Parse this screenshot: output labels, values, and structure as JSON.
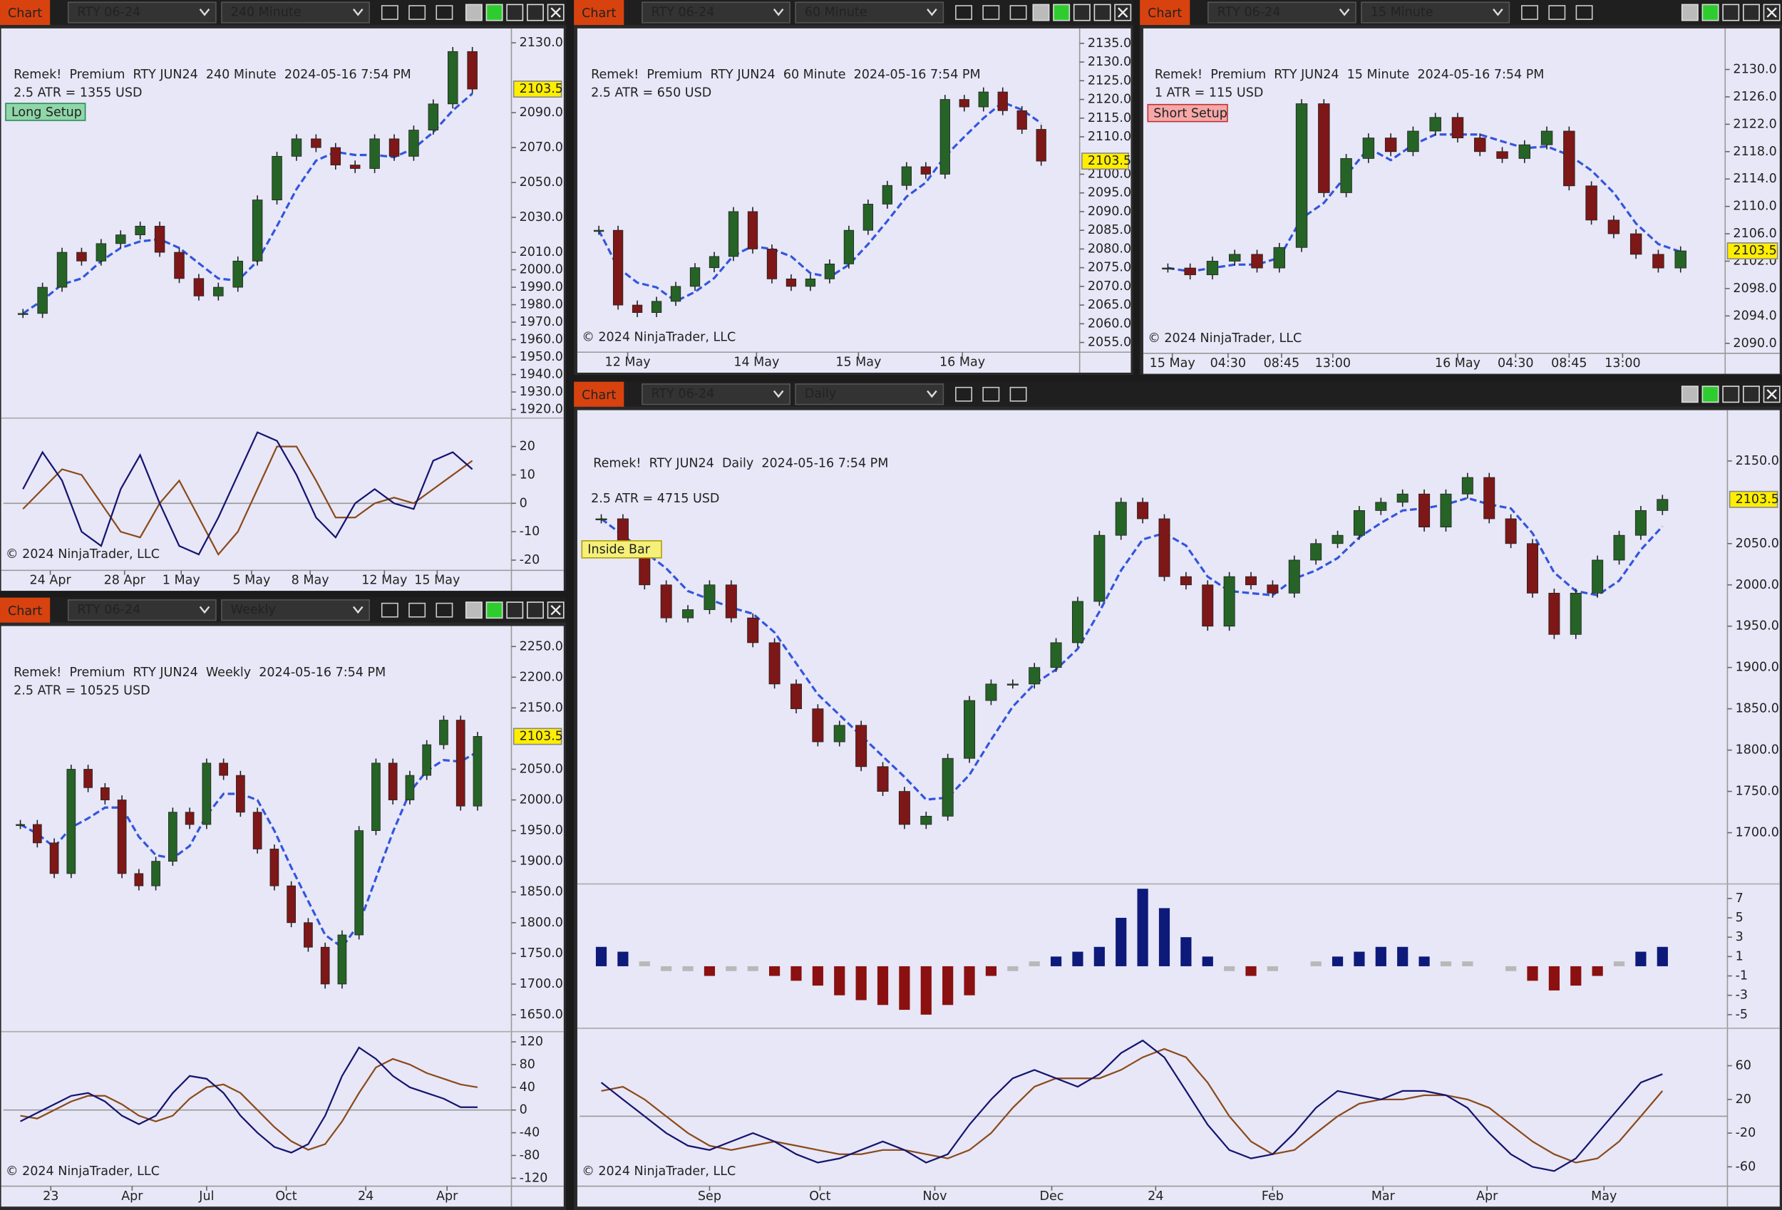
{
  "windows": [
    {
      "tab": "Chart",
      "symbol": "RTY 06-24",
      "interval": "240 Minute",
      "header": "Remek!  Premium  RTY JUN24  240 Minute  2024-05-16 7:54 PM",
      "atr": "2.5 ATR = 1355 USD",
      "badge": "Long Setup",
      "copyright": "© 2024 NinjaTrader, LLC",
      "last": 2103.5,
      "xlim": [
        -1,
        25
      ],
      "xticks": [
        {
          "value": 1.4,
          "label": "24 Apr"
        },
        {
          "value": 5.2,
          "label": "28 Apr"
        },
        {
          "value": 8.1,
          "label": "1 May"
        },
        {
          "value": 11.7,
          "label": "5 May"
        },
        {
          "value": 14.7,
          "label": "8 May"
        },
        {
          "value": 18.5,
          "label": "12 May"
        },
        {
          "value": 21.2,
          "label": "15 May"
        }
      ],
      "price": {
        "ylim": [
          1917,
          2135
        ],
        "yticks": [
          {
            "value": 2130,
            "label": "2130.0"
          },
          {
            "value": 2090,
            "label": "2090.0"
          },
          {
            "value": 2070,
            "label": "2070.0"
          },
          {
            "value": 2050,
            "label": "2050.0"
          },
          {
            "value": 2030,
            "label": "2030.0"
          },
          {
            "value": 2010,
            "label": "2010.0"
          },
          {
            "value": 2000,
            "label": "2000.0"
          },
          {
            "value": 1990,
            "label": "1990.0"
          },
          {
            "value": 1980,
            "label": "1980.0"
          },
          {
            "value": 1970,
            "label": "1970.0"
          },
          {
            "value": 1960,
            "label": "1960.0"
          },
          {
            "value": 1950,
            "label": "1950.0"
          },
          {
            "value": 1940,
            "label": "1940.0"
          },
          {
            "value": 1930,
            "label": "1930.0"
          },
          {
            "value": 1920,
            "label": "1920.0"
          }
        ],
        "closes": [
          1975,
          1990,
          2010,
          2005,
          2015,
          2020,
          2025,
          2010,
          1995,
          1985,
          1990,
          2005,
          2040,
          2065,
          2075,
          2070,
          2060,
          2058,
          2075,
          2065,
          2080,
          2095,
          2125,
          2103.5
        ]
      },
      "osc": {
        "ylim": [
          -22.8,
          30
        ],
        "yticks": [
          20,
          10,
          0,
          -10,
          -20
        ],
        "fast": [
          5,
          18,
          8,
          -10,
          -15,
          5,
          17,
          0,
          -15,
          -18,
          -5,
          10,
          25,
          22,
          10,
          -5,
          -12,
          0,
          5,
          0,
          -2,
          15,
          18,
          12
        ],
        "slow": [
          -2,
          5,
          12,
          10,
          0,
          -10,
          -12,
          0,
          8,
          -5,
          -18,
          -10,
          5,
          20,
          20,
          8,
          -5,
          -5,
          0,
          2,
          0,
          5,
          10,
          15
        ]
      }
    },
    {
      "tab": "Chart",
      "symbol": "RTY 06-24",
      "interval": "60 Minute",
      "header": "Remek!  Premium  RTY JUN24  60 Minute  2024-05-16 7:54 PM",
      "atr": "2.5 ATR = 650 USD",
      "copyright": "© 2024 NinjaTrader, LLC",
      "last": 2103.5,
      "xlim": [
        -1,
        25
      ],
      "xticks": [
        {
          "value": 1.5,
          "label": "12 May"
        },
        {
          "value": 8.2,
          "label": "14 May"
        },
        {
          "value": 13.5,
          "label": "15 May"
        },
        {
          "value": 18.9,
          "label": "16 May"
        }
      ],
      "price": {
        "ylim": [
          2053,
          2139
        ],
        "yticks": [
          {
            "value": 2135,
            "label": "2135.0"
          },
          {
            "value": 2130,
            "label": "2130.0"
          },
          {
            "value": 2125,
            "label": "2125.0"
          },
          {
            "value": 2120,
            "label": "2120.0"
          },
          {
            "value": 2115,
            "label": "2115.0"
          },
          {
            "value": 2110,
            "label": "2110.0"
          },
          {
            "value": 2100,
            "label": "2100.0"
          },
          {
            "value": 2095,
            "label": "2095.0"
          },
          {
            "value": 2090,
            "label": "2090.0"
          },
          {
            "value": 2085,
            "label": "2085.0"
          },
          {
            "value": 2080,
            "label": "2080.0"
          },
          {
            "value": 2075,
            "label": "2075.0"
          },
          {
            "value": 2070,
            "label": "2070.0"
          },
          {
            "value": 2065,
            "label": "2065.0"
          },
          {
            "value": 2060,
            "label": "2060.0"
          },
          {
            "value": 2055,
            "label": "2055.0"
          }
        ],
        "closes": [
          2085,
          2065,
          2063,
          2066,
          2070,
          2075,
          2078,
          2090,
          2080,
          2072,
          2070,
          2072,
          2076,
          2085,
          2092,
          2097,
          2102,
          2100,
          2120,
          2118,
          2122,
          2117,
          2112,
          2103.5
        ]
      }
    },
    {
      "tab": "Chart",
      "symbol": "RTY 06-24",
      "interval": "15 Minute",
      "header": "Remek!  Premium  RTY JUN24  15 Minute  2024-05-16 7:54 PM",
      "atr": "1 ATR = 115 USD",
      "badge": "Short Setup",
      "copyright": "© 2024 NinjaTrader, LLC",
      "last": 2103.5,
      "xlim": [
        -1,
        25
      ],
      "xticks": [
        {
          "value": 0.2,
          "label": "15 May"
        },
        {
          "value": 2.7,
          "label": "04:30"
        },
        {
          "value": 5.1,
          "label": "08:45"
        },
        {
          "value": 7.4,
          "label": "13:00"
        },
        {
          "value": 13,
          "label": "16 May"
        },
        {
          "value": 15.6,
          "label": "04:30"
        },
        {
          "value": 18,
          "label": "08:45"
        },
        {
          "value": 20.4,
          "label": "13:00"
        }
      ],
      "price": {
        "ylim": [
          2088.7,
          2136
        ],
        "yticks": [
          {
            "value": 2130,
            "label": "2130.0"
          },
          {
            "value": 2126,
            "label": "2126.0"
          },
          {
            "value": 2122,
            "label": "2122.0"
          },
          {
            "value": 2118,
            "label": "2118.0"
          },
          {
            "value": 2114,
            "label": "2114.0"
          },
          {
            "value": 2110,
            "label": "2110.0"
          },
          {
            "value": 2106,
            "label": "2106.0"
          },
          {
            "value": 2102,
            "label": "2102.0"
          },
          {
            "value": 2098,
            "label": "2098.0"
          },
          {
            "value": 2094,
            "label": "2094.0"
          },
          {
            "value": 2090,
            "label": "2090.0"
          }
        ],
        "closes": [
          2101,
          2100,
          2102,
          2103,
          2101,
          2104,
          2125,
          2112,
          2117,
          2120,
          2118,
          2121,
          2123,
          2120,
          2118,
          2117,
          2119,
          2121,
          2113,
          2108,
          2106,
          2103,
          2101,
          2103.5
        ]
      }
    },
    {
      "tab": "Chart",
      "symbol": "RTY 06-24",
      "interval": "Weekly",
      "header": "Remek!  Premium  RTY JUN24  Weekly  2024-05-16 7:54 PM",
      "atr": "2.5 ATR = 10525 USD",
      "copyright": "© 2024 NinjaTrader, LLC",
      "last": 2103.5,
      "xlim": [
        -1,
        29
      ],
      "xticks": [
        {
          "value": 1.8,
          "label": "23"
        },
        {
          "value": 6.6,
          "label": "Apr"
        },
        {
          "value": 11,
          "label": "Jul"
        },
        {
          "value": 15.7,
          "label": "Oct"
        },
        {
          "value": 20.4,
          "label": "24"
        },
        {
          "value": 25.2,
          "label": "Apr"
        }
      ],
      "price": {
        "ylim": [
          1628,
          2276
        ],
        "yticks": [
          {
            "value": 2250,
            "label": "2250.0"
          },
          {
            "value": 2200,
            "label": "2200.0"
          },
          {
            "value": 2150,
            "label": "2150.0"
          },
          {
            "value": 2050,
            "label": "2050.0"
          },
          {
            "value": 2000,
            "label": "2000.0"
          },
          {
            "value": 1950,
            "label": "1950.0"
          },
          {
            "value": 1900,
            "label": "1900.0"
          },
          {
            "value": 1850,
            "label": "1850.0"
          },
          {
            "value": 1800,
            "label": "1800.0"
          },
          {
            "value": 1750,
            "label": "1750.0"
          },
          {
            "value": 1700,
            "label": "1700.0"
          },
          {
            "value": 1650,
            "label": "1650.0"
          }
        ],
        "closes": [
          1960,
          1930,
          1880,
          2050,
          2020,
          2000,
          1880,
          1860,
          1900,
          1980,
          1960,
          2060,
          2040,
          1980,
          1920,
          1860,
          1800,
          1760,
          1700,
          1780,
          1950,
          2060,
          2000,
          2040,
          2090,
          2130,
          1990,
          2103.5
        ]
      },
      "osc": {
        "ylim": [
          -132,
          138
        ],
        "yticks": [
          120,
          80,
          40,
          0,
          -40,
          -80,
          -120
        ],
        "fast": [
          -20,
          -5,
          10,
          25,
          30,
          15,
          -10,
          -25,
          -10,
          30,
          60,
          55,
          30,
          -10,
          -40,
          -65,
          -75,
          -60,
          -10,
          60,
          110,
          90,
          60,
          40,
          30,
          20,
          5,
          5
        ],
        "slow": [
          -10,
          -15,
          0,
          15,
          25,
          25,
          10,
          -10,
          -20,
          -10,
          20,
          40,
          45,
          30,
          0,
          -30,
          -55,
          -70,
          -60,
          -20,
          30,
          75,
          90,
          80,
          65,
          55,
          45,
          40
        ]
      }
    },
    {
      "tab": "Chart",
      "symbol": "RTY 06-24",
      "interval": "Daily",
      "header": "Remek!  RTY JUN24  Daily  2024-05-16 7:54 PM",
      "atr": "2.5 ATR = 4715 USD",
      "badge": "Inside Bar",
      "copyright": "© 2024 NinjaTrader, LLC",
      "last": 2103.5,
      "xlim": [
        -1,
        52
      ],
      "xticks": [
        {
          "value": 5,
          "label": "Sep"
        },
        {
          "value": 10.1,
          "label": "Oct"
        },
        {
          "value": 15.4,
          "label": "Nov"
        },
        {
          "value": 20.8,
          "label": "Dec"
        },
        {
          "value": 25.6,
          "label": "24"
        },
        {
          "value": 31,
          "label": "Feb"
        },
        {
          "value": 36.1,
          "label": "Mar"
        },
        {
          "value": 40.9,
          "label": "Apr"
        },
        {
          "value": 46.3,
          "label": "May"
        }
      ],
      "price": {
        "ylim": [
          1638,
          2206
        ],
        "yticks": [
          {
            "value": 2150,
            "label": "2150.0"
          },
          {
            "value": 2050,
            "label": "2050.0"
          },
          {
            "value": 2000,
            "label": "2000.0"
          },
          {
            "value": 1950,
            "label": "1950.0"
          },
          {
            "value": 1900,
            "label": "1900.0"
          },
          {
            "value": 1850,
            "label": "1850.0"
          },
          {
            "value": 1800,
            "label": "1800.0"
          },
          {
            "value": 1750,
            "label": "1750.0"
          },
          {
            "value": 1700,
            "label": "1700.0"
          }
        ],
        "closes": [
          2080,
          2040,
          2000,
          1960,
          1970,
          2000,
          1960,
          1930,
          1880,
          1850,
          1810,
          1830,
          1780,
          1750,
          1710,
          1720,
          1790,
          1860,
          1880,
          1880,
          1900,
          1930,
          1980,
          2060,
          2100,
          2080,
          2010,
          2000,
          1950,
          2010,
          2000,
          1990,
          2030,
          2050,
          2060,
          2090,
          2100,
          2110,
          2070,
          2110,
          2130,
          2080,
          2050,
          1990,
          1940,
          1990,
          2030,
          2060,
          2090,
          2103.5
        ]
      },
      "hist": {
        "ylim": [
          -6.4,
          8.5
        ],
        "yticks": [
          7,
          5,
          3,
          1,
          -1,
          -3,
          -5
        ],
        "values": [
          2,
          1.5,
          0.5,
          -0.5,
          -0.5,
          -1,
          -0.5,
          -0.5,
          -1,
          -1.5,
          -2,
          -3,
          -3.5,
          -4,
          -4.5,
          -5,
          -4,
          -3,
          -1,
          -0.5,
          0.5,
          1,
          1.5,
          2,
          5,
          8,
          6,
          3,
          1,
          -0.5,
          -1,
          -0.5,
          0,
          0.5,
          1,
          1.5,
          2,
          2,
          1,
          0.5,
          0.5,
          0,
          -0.5,
          -1.5,
          -2.5,
          -2,
          -1,
          0.5,
          1.5,
          2
        ]
      },
      "osc": {
        "ylim": [
          -81.6,
          104.5
        ],
        "yticks": [
          60,
          20,
          -20,
          -60
        ],
        "fast": [
          40,
          20,
          0,
          -20,
          -35,
          -40,
          -30,
          -20,
          -30,
          -45,
          -55,
          -50,
          -40,
          -30,
          -40,
          -55,
          -45,
          -10,
          20,
          45,
          55,
          45,
          35,
          50,
          75,
          90,
          70,
          30,
          -10,
          -40,
          -50,
          -45,
          -20,
          10,
          30,
          25,
          20,
          30,
          30,
          25,
          10,
          -20,
          -45,
          -60,
          -65,
          -50,
          -20,
          10,
          40,
          50
        ],
        "slow": [
          30,
          35,
          20,
          0,
          -20,
          -35,
          -40,
          -35,
          -30,
          -35,
          -40,
          -45,
          -45,
          -40,
          -40,
          -45,
          -50,
          -40,
          -20,
          10,
          35,
          45,
          45,
          45,
          55,
          70,
          80,
          70,
          40,
          0,
          -30,
          -45,
          -40,
          -20,
          0,
          15,
          20,
          20,
          25,
          25,
          20,
          10,
          -10,
          -30,
          -45,
          -55,
          -50,
          -30,
          0,
          30
        ]
      }
    }
  ]
}
